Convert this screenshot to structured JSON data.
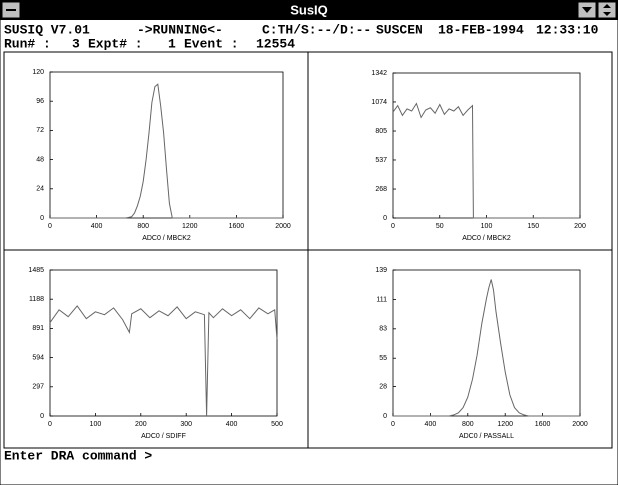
{
  "window": {
    "title": "SusIQ"
  },
  "status": {
    "program": "SUSIQ V7.01",
    "state": "->RUNNING<-",
    "flags": "C:TH/S:--/D:--",
    "station": "SUSCEN",
    "date": "18-FEB-1994",
    "time": "12:33:10",
    "run_label": "Run# :",
    "run": 3,
    "expt_label": "Expt# :",
    "expt": 1,
    "event_label": "Event :",
    "event": 12554
  },
  "prompt": "Enter DRA command >",
  "chart_data": [
    {
      "type": "line",
      "x_label": "ADC0 / MBCK2",
      "color": "#666666",
      "x": [
        0,
        600,
        650,
        700,
        725,
        750,
        775,
        800,
        825,
        850,
        875,
        900,
        925,
        950,
        975,
        1000,
        1025,
        1050,
        1100,
        2000
      ],
      "values": [
        0,
        0,
        0,
        1,
        4,
        10,
        18,
        30,
        48,
        70,
        95,
        108,
        110,
        92,
        70,
        40,
        12,
        0,
        0,
        0
      ],
      "xlim": [
        0,
        2000
      ],
      "xticks": [
        0,
        400,
        800,
        1200,
        1600,
        2000
      ],
      "ylim": [
        0,
        120
      ],
      "yticks": [
        0,
        24,
        48,
        72,
        96,
        120
      ]
    },
    {
      "type": "line",
      "x_label": "ADC0 / MBCK2",
      "color": "#666666",
      "x": [
        0,
        5,
        10,
        15,
        20,
        25,
        30,
        35,
        40,
        45,
        50,
        55,
        60,
        65,
        70,
        75,
        80,
        85,
        86,
        200
      ],
      "values": [
        980,
        1040,
        950,
        1010,
        990,
        1060,
        930,
        1000,
        1020,
        970,
        1050,
        960,
        1010,
        990,
        1030,
        950,
        1000,
        1040,
        0,
        0
      ],
      "xlim": [
        0,
        200
      ],
      "xticks": [
        0,
        50,
        100,
        150,
        200
      ],
      "ylim": [
        0,
        1342
      ],
      "yticks": [
        0,
        268,
        537,
        805,
        1074,
        1342
      ]
    },
    {
      "type": "line",
      "x_label": "ADC0 / SDIFF",
      "color": "#666666",
      "x": [
        0,
        20,
        40,
        60,
        80,
        100,
        120,
        140,
        160,
        175,
        180,
        200,
        220,
        240,
        260,
        280,
        300,
        320,
        340,
        345,
        350,
        360,
        380,
        400,
        420,
        440,
        460,
        480,
        495,
        500
      ],
      "values": [
        950,
        1080,
        1010,
        1120,
        990,
        1060,
        1030,
        1100,
        980,
        850,
        1040,
        1090,
        1000,
        1070,
        1020,
        1110,
        990,
        1060,
        1030,
        0,
        1050,
        1000,
        1090,
        1020,
        1080,
        990,
        1100,
        1040,
        1080,
        780
      ],
      "xlim": [
        0,
        500
      ],
      "xticks": [
        0,
        100,
        200,
        300,
        400,
        500
      ],
      "ylim": [
        0,
        1485
      ],
      "yticks": [
        0,
        297,
        594,
        891,
        1188,
        1485
      ]
    },
    {
      "type": "line",
      "x_label": "ADC0 / PASSALL",
      "color": "#666666",
      "x": [
        0,
        600,
        650,
        700,
        750,
        800,
        850,
        900,
        950,
        1000,
        1025,
        1050,
        1075,
        1100,
        1150,
        1200,
        1250,
        1300,
        1350,
        1400,
        1450,
        2000
      ],
      "values": [
        0,
        0,
        1,
        3,
        8,
        18,
        35,
        58,
        88,
        112,
        122,
        130,
        120,
        100,
        70,
        42,
        20,
        8,
        3,
        1,
        0,
        0
      ],
      "xlim": [
        0,
        2000
      ],
      "xticks": [
        0,
        400,
        800,
        1200,
        1600,
        2000
      ],
      "ylim": [
        0,
        139
      ],
      "yticks": [
        0,
        28,
        55,
        83,
        111,
        139
      ]
    }
  ]
}
